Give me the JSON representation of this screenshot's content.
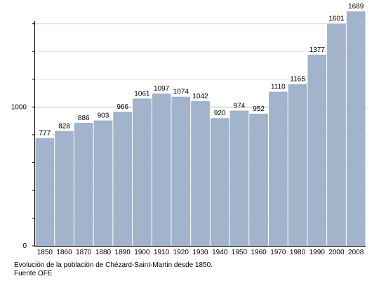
{
  "chart_data": {
    "type": "bar",
    "categories": [
      "1850",
      "1860",
      "1870",
      "1880",
      "1890",
      "1900",
      "1910",
      "1920",
      "1930",
      "1940",
      "1950",
      "1960",
      "1970",
      "1980",
      "1990",
      "2000",
      "2008"
    ],
    "values": [
      777,
      828,
      886,
      903,
      966,
      1061,
      1097,
      1074,
      1042,
      920,
      974,
      952,
      1110,
      1165,
      1377,
      1601,
      1689
    ],
    "ylim": [
      0,
      1700
    ],
    "y_ticks": [
      0,
      1000
    ],
    "grid": true,
    "bar_color": "#a2b4cb",
    "title": "",
    "xlabel": "",
    "ylabel": ""
  },
  "caption": {
    "line1": "Evolución de la población de Chézard-Saint-Martin desde 1850.",
    "line2": "Fuente OFE"
  }
}
